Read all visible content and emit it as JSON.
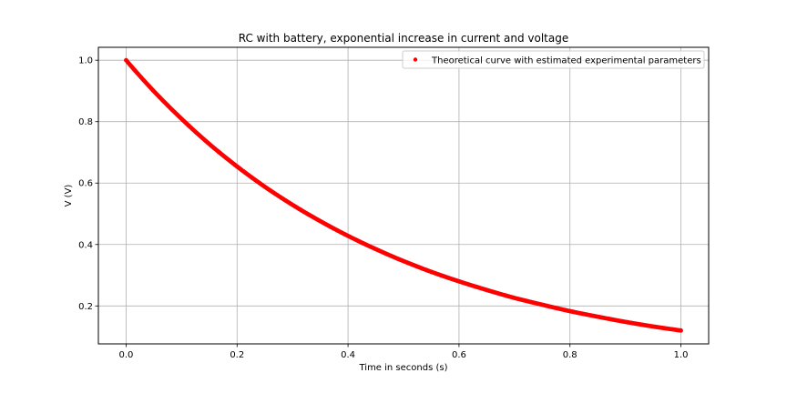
{
  "chart_data": {
    "type": "scatter",
    "title": "RC with battery, exponential increase in current and voltage",
    "xlabel": "Time in seconds (s)",
    "ylabel": "V (V)",
    "xlim": [
      -0.05,
      1.05
    ],
    "ylim": [
      0.0765,
      1.042
    ],
    "xticks": [
      0.0,
      0.2,
      0.4,
      0.6,
      0.8,
      1.0
    ],
    "xtick_labels": [
      "0.0",
      "0.2",
      "0.4",
      "0.6",
      "0.8",
      "1.0"
    ],
    "yticks": [
      0.2,
      0.4,
      0.6,
      0.8,
      1.0
    ],
    "ytick_labels": [
      "0.2",
      "0.4",
      "0.6",
      "0.8",
      "1.0"
    ],
    "grid": true,
    "legend_position": "upper right",
    "series": [
      {
        "name": "Theoretical curve with estimated experimental parameters",
        "color": "#ff0000",
        "marker": "dot",
        "x": [
          0.0,
          0.05,
          0.1,
          0.15,
          0.2,
          0.25,
          0.3,
          0.35,
          0.4,
          0.45,
          0.5,
          0.55,
          0.6,
          0.65,
          0.7,
          0.75,
          0.8,
          0.85,
          0.9,
          0.95,
          1.0
        ],
        "y": [
          1.0,
          0.899,
          0.809,
          0.727,
          0.654,
          0.588,
          0.529,
          0.476,
          0.428,
          0.385,
          0.346,
          0.311,
          0.28,
          0.252,
          0.226,
          0.204,
          0.183,
          0.165,
          0.148,
          0.133,
          0.12
        ]
      }
    ]
  }
}
